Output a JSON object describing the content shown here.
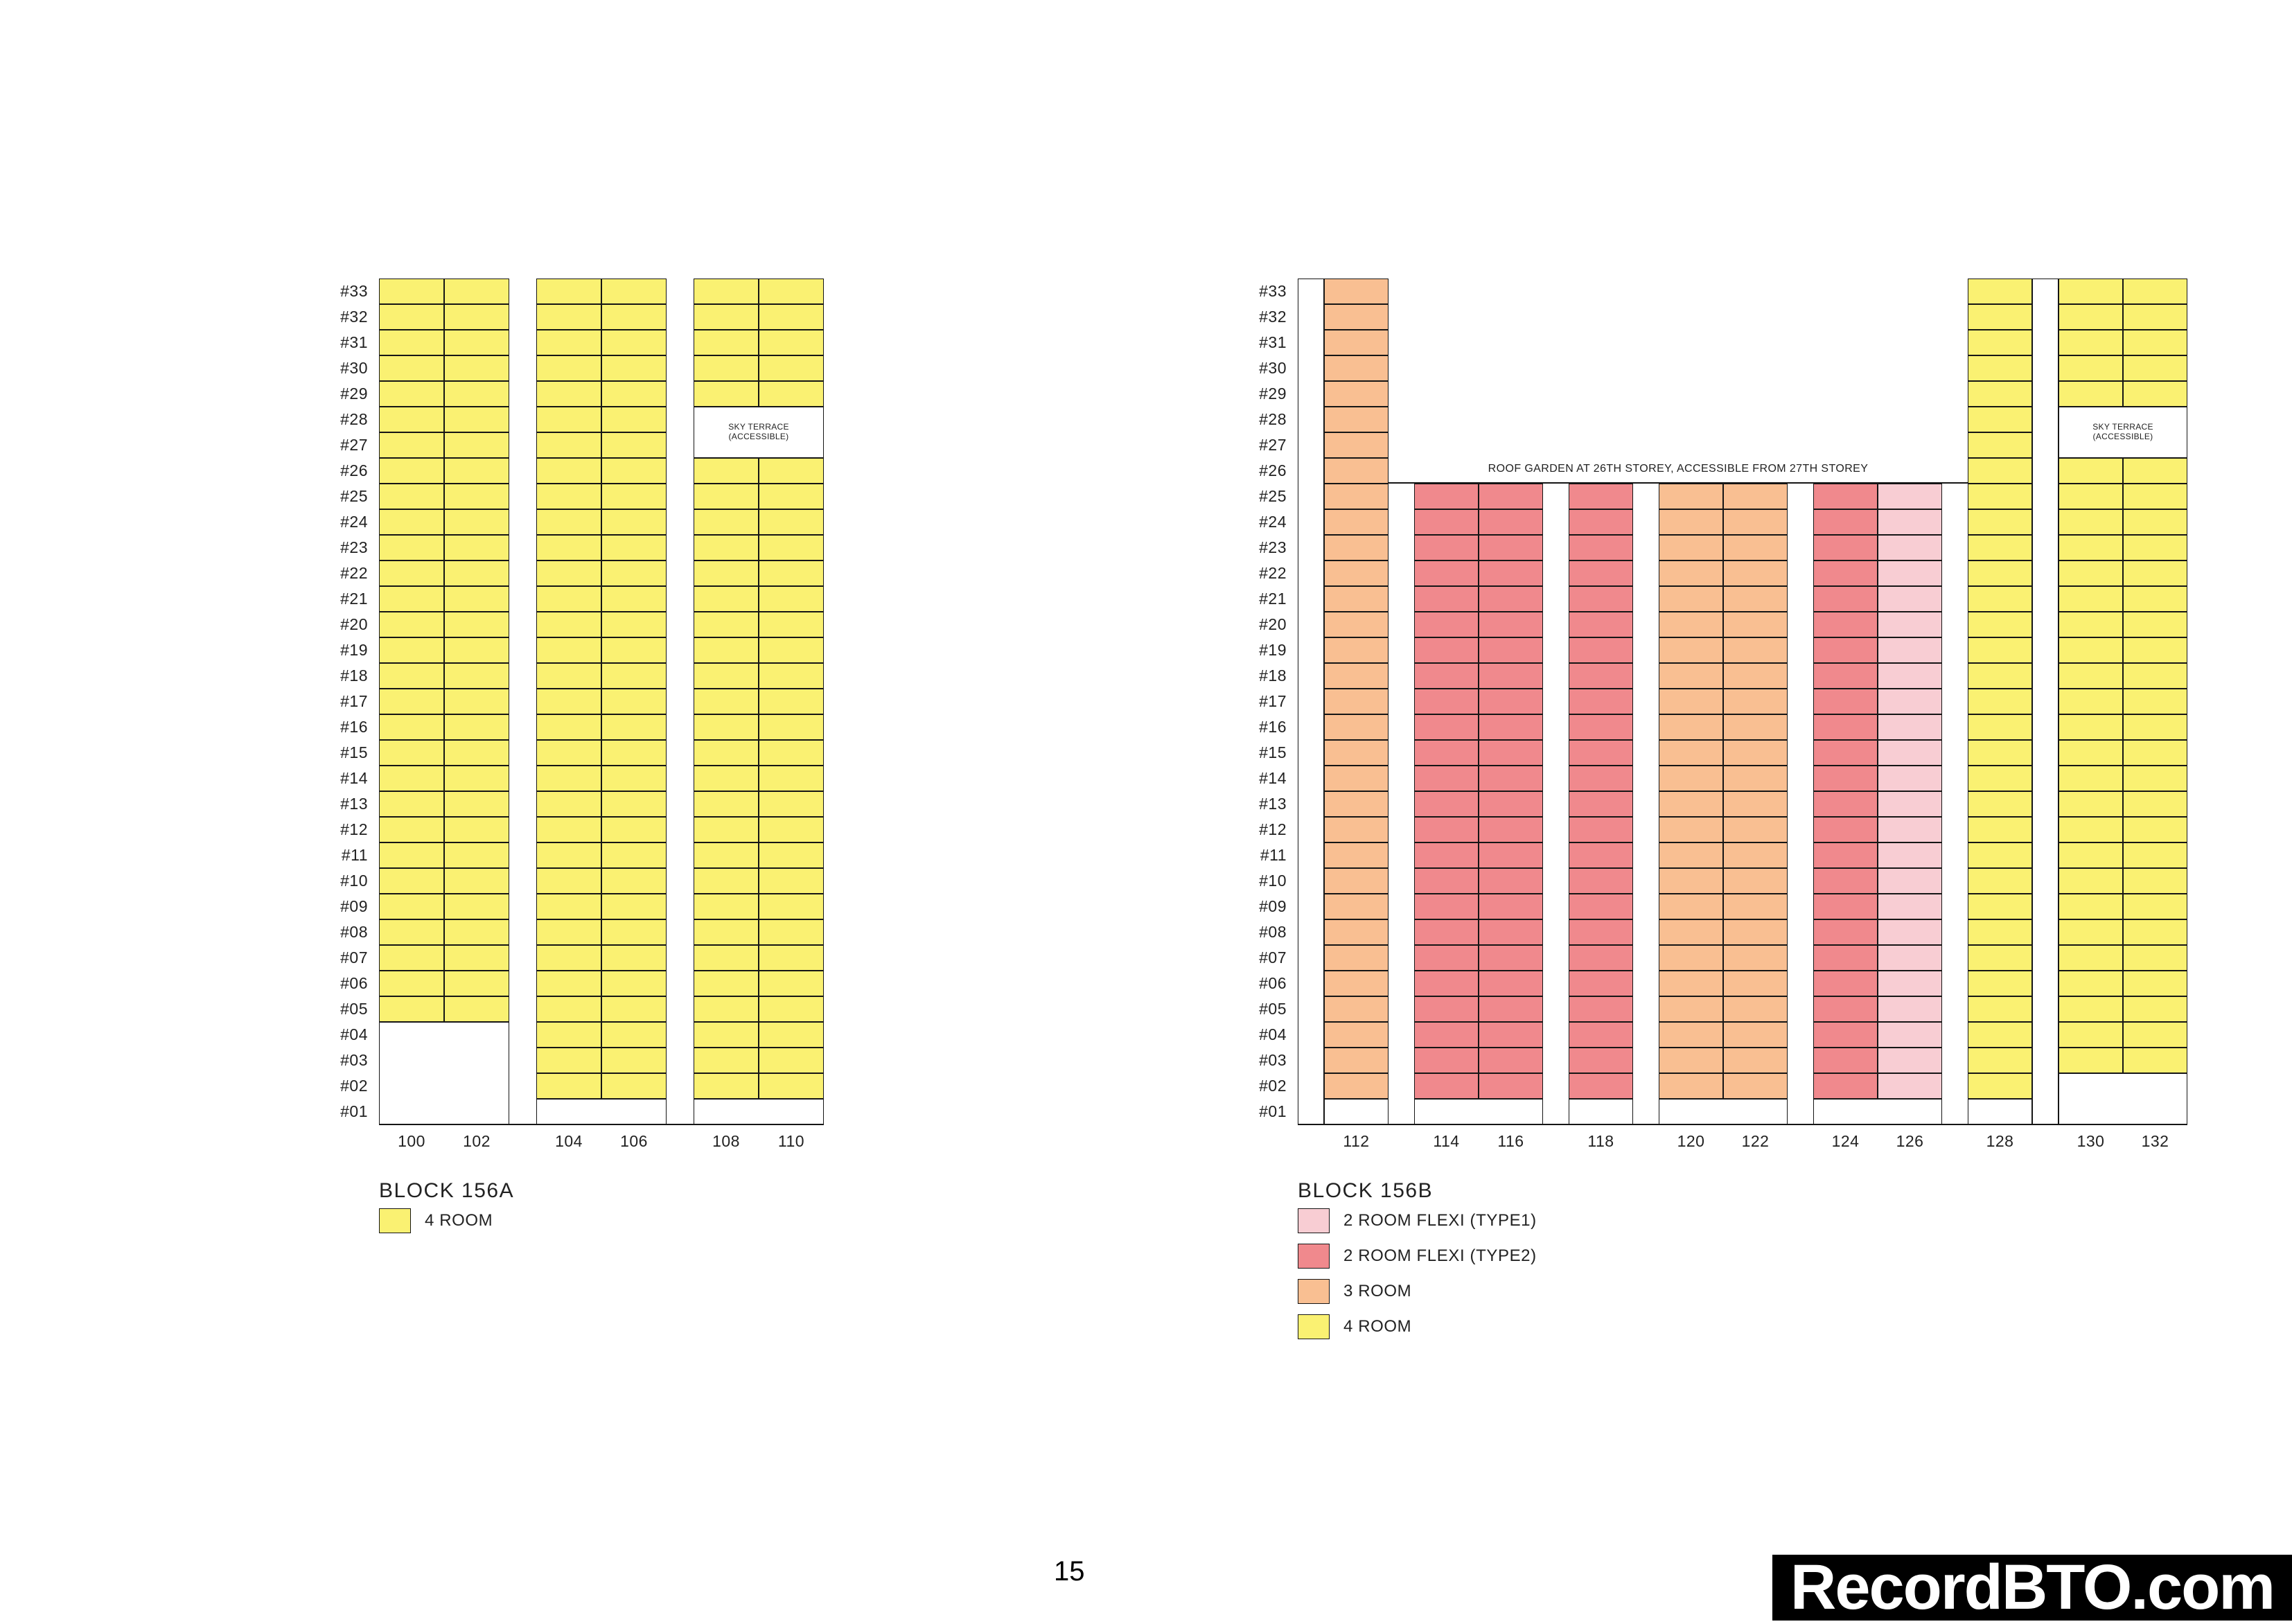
{
  "page": {
    "number": "15",
    "watermark": "RecordBTO.com"
  },
  "palette": {
    "4_room": "#FAF172",
    "3_room": "#F9BF92",
    "2_room_flexi_type2": "#F0898D",
    "2_room_flexi_type1": "#F8CDD3",
    "void": "#FFFFFF",
    "line": "#151515"
  },
  "floors_top_to_bottom": [
    "#33",
    "#32",
    "#31",
    "#30",
    "#29",
    "#28",
    "#27",
    "#26",
    "#25",
    "#24",
    "#23",
    "#22",
    "#21",
    "#20",
    "#19",
    "#18",
    "#17",
    "#16",
    "#15",
    "#14",
    "#13",
    "#12",
    "#11",
    "#10",
    "#09",
    "#08",
    "#07",
    "#06",
    "#05",
    "#04",
    "#03",
    "#02",
    "#01"
  ],
  "blocks": [
    {
      "title": "BLOCK 156A",
      "legend": [
        {
          "type": "4_room",
          "label": "4 ROOM"
        }
      ],
      "towers": [
        {
          "stacks": [
            {
              "label": "100",
              "type": "4_room"
            },
            {
              "label": "102",
              "type": "4_room"
            }
          ],
          "unit_floors": [
            5,
            33
          ],
          "voids": [
            [
              1,
              4
            ]
          ]
        },
        {
          "stacks": [
            {
              "label": "104",
              "type": "4_room"
            },
            {
              "label": "106",
              "type": "4_room"
            }
          ],
          "unit_floors": [
            2,
            33
          ],
          "voids": [
            [
              1,
              1
            ]
          ]
        },
        {
          "stacks": [
            {
              "label": "108",
              "type": "4_room"
            },
            {
              "label": "110",
              "type": "4_room"
            }
          ],
          "unit_floors": [
            2,
            33
          ],
          "voids": [
            [
              1,
              1
            ]
          ],
          "terrace": {
            "floors": [
              27,
              28
            ],
            "lines": [
              "SKY TERRACE",
              "(ACCESSIBLE)"
            ]
          }
        }
      ]
    },
    {
      "title": "BLOCK 156B",
      "roof_garden": {
        "text": "ROOF GARDEN AT 26TH STOREY, ACCESSIBLE FROM 27TH STOREY",
        "from_stack": "112",
        "to_stack": "128",
        "top_floor": 25
      },
      "legend": [
        {
          "type": "2_room_flexi_type1",
          "label": "2 ROOM FLEXI (TYPE1)"
        },
        {
          "type": "2_room_flexi_type2",
          "label": "2 ROOM FLEXI (TYPE2)"
        },
        {
          "type": "3_room",
          "label": "3 ROOM"
        },
        {
          "type": "4_room",
          "label": "4 ROOM"
        }
      ],
      "towers": [
        {
          "narrow": true,
          "voids": [
            [
              1,
              33
            ]
          ]
        },
        {
          "stacks": [
            {
              "label": "112",
              "type": "3_room"
            }
          ],
          "unit_floors": [
            2,
            33
          ],
          "voids": [
            [
              1,
              1
            ]
          ]
        },
        {
          "stacks": [
            {
              "label": "114",
              "type": "2_room_flexi_type2"
            },
            {
              "label": "116",
              "type": "2_room_flexi_type2"
            }
          ],
          "unit_floors": [
            2,
            25
          ],
          "voids": [
            [
              1,
              1
            ]
          ]
        },
        {
          "stacks": [
            {
              "label": "118",
              "type": "2_room_flexi_type2"
            }
          ],
          "unit_floors": [
            2,
            25
          ],
          "voids": [
            [
              1,
              1
            ]
          ]
        },
        {
          "stacks": [
            {
              "label": "120",
              "type": "3_room"
            },
            {
              "label": "122",
              "type": "3_room"
            }
          ],
          "unit_floors": [
            2,
            25
          ],
          "voids": [
            [
              1,
              1
            ]
          ]
        },
        {
          "stacks": [
            {
              "label": "124",
              "type": "2_room_flexi_type2"
            },
            {
              "label": "126",
              "type": "2_room_flexi_type1"
            }
          ],
          "unit_floors": [
            2,
            25
          ],
          "voids": [
            [
              1,
              1
            ]
          ]
        },
        {
          "stacks": [
            {
              "label": "128",
              "type": "4_room"
            }
          ],
          "unit_floors": [
            2,
            33
          ],
          "voids": [
            [
              1,
              1
            ]
          ]
        },
        {
          "narrow": true,
          "voids": [
            [
              1,
              33
            ]
          ]
        },
        {
          "stacks": [
            {
              "label": "130",
              "type": "4_room"
            },
            {
              "label": "132",
              "type": "4_room"
            }
          ],
          "unit_floors": [
            3,
            33
          ],
          "voids": [
            [
              1,
              2
            ]
          ],
          "terrace": {
            "floors": [
              27,
              28
            ],
            "lines": [
              "SKY TERRACE",
              "(ACCESSIBLE)"
            ]
          }
        }
      ]
    }
  ]
}
